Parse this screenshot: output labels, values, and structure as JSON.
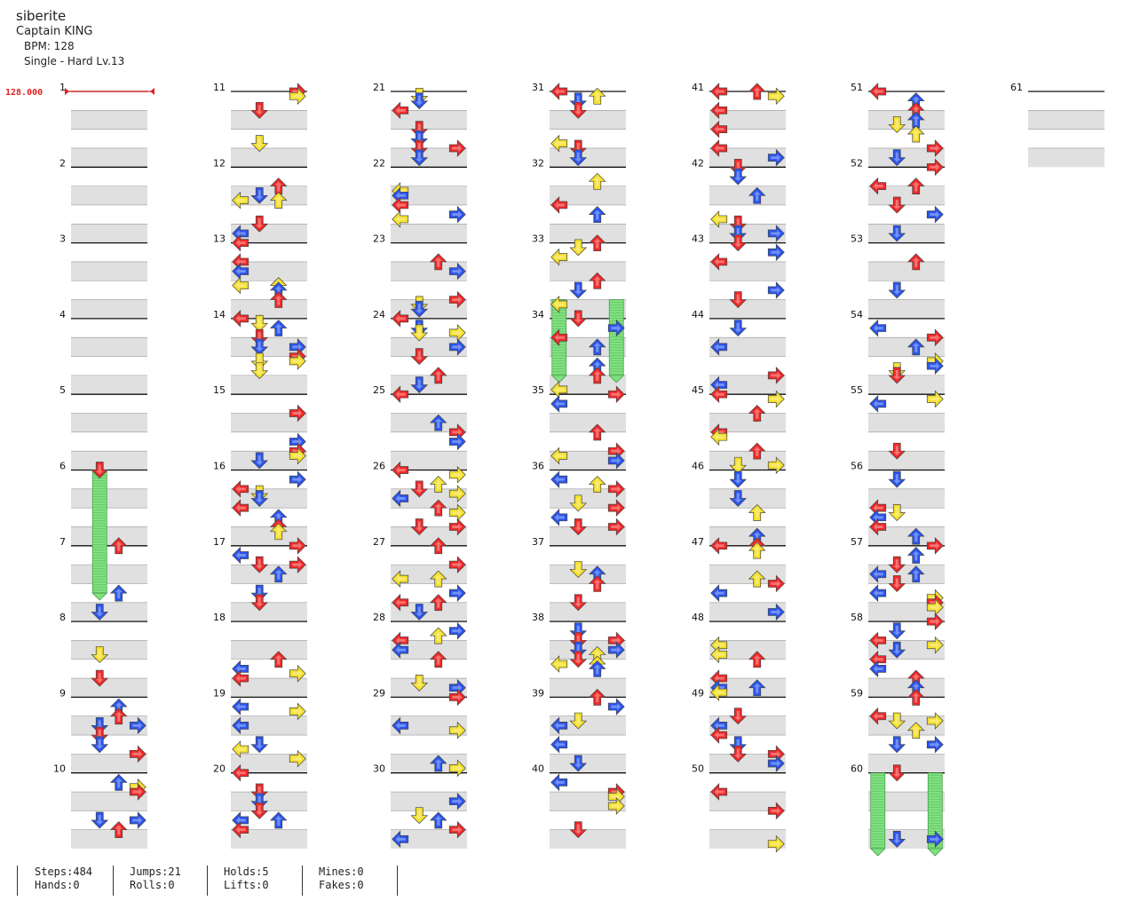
{
  "song": {
    "title": "siberite",
    "artist": "Captain KING",
    "bpm_label": "BPM: 128",
    "difficulty_label": "Single - Hard  Lv.13"
  },
  "bpm_marker": "128.000",
  "measure_numbers": [
    "1",
    "2",
    "3",
    "4",
    "5",
    "6",
    "7",
    "8",
    "9",
    "10",
    "11",
    "12",
    "13",
    "14",
    "15",
    "16",
    "17",
    "18",
    "19",
    "20",
    "21",
    "22",
    "23",
    "24",
    "25",
    "26",
    "27",
    "28",
    "29",
    "30",
    "31",
    "32",
    "33",
    "34",
    "35",
    "36",
    "37",
    "38",
    "39",
    "40",
    "41",
    "42",
    "43",
    "44",
    "45",
    "46",
    "47",
    "48",
    "49",
    "50",
    "51",
    "52",
    "53",
    "54",
    "55",
    "56",
    "57",
    "58",
    "59",
    "60",
    "61"
  ],
  "colors": {
    "left": "#f02828",
    "down": "#2a55ee",
    "up": "#f5e02c",
    "right": "#f02828",
    "quarter": "#f02828",
    "eighth": "#2a55ee",
    "sixteenth": "#f5e02c",
    "hold": "#7fe07f",
    "band": "#e0e0e0"
  },
  "stats": {
    "steps": "Steps:484",
    "hands": "Hands:0",
    "jumps": "Jumps:21",
    "rolls": "Rolls:0",
    "holds": "Holds:5",
    "lifts": "Lifts:0",
    "mines": "Mines:0",
    "fakes": "Fakes:0"
  },
  "chart_data": {
    "type": "step-chart",
    "measures": 61,
    "measures_per_column": 10,
    "bpm": 128,
    "holds": [
      {
        "measure": 6,
        "beat": 0,
        "lane": 1,
        "length_beats": 6.5
      },
      {
        "measure": 33,
        "beat": 3,
        "lane": 0,
        "length_beats": 4
      },
      {
        "measure": 33,
        "beat": 3,
        "lane": 3,
        "length_beats": 4
      },
      {
        "measure": 60,
        "beat": 0,
        "lane": 0,
        "length_beats": 4
      },
      {
        "measure": 60,
        "beat": 0,
        "lane": 3,
        "length_beats": 4
      }
    ]
  }
}
